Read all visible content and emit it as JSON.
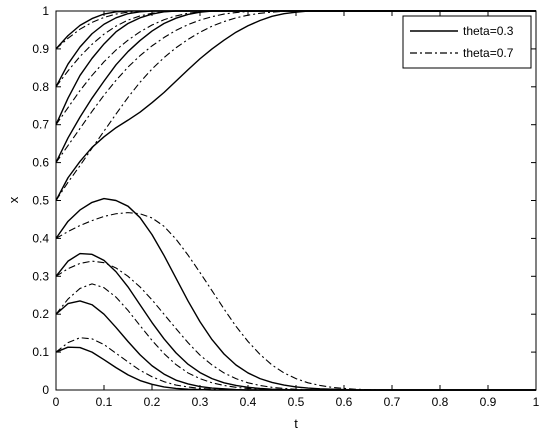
{
  "chart_data": {
    "type": "line",
    "title": "",
    "xlabel": "t",
    "ylabel": "x",
    "xlim": [
      0,
      1
    ],
    "ylim": [
      0,
      1
    ],
    "xticks": [
      "0",
      "0.1",
      "0.2",
      "0.3",
      "0.4",
      "0.5",
      "0.6",
      "0.7",
      "0.8",
      "0.9",
      "1"
    ],
    "yticks": [
      "0",
      "0.1",
      "0.2",
      "0.3",
      "0.4",
      "0.5",
      "0.6",
      "0.7",
      "0.8",
      "0.9",
      "1"
    ],
    "grid": false,
    "legend_position": "top-right",
    "legend": [
      {
        "label": "theta=0.3",
        "style": "solid"
      },
      {
        "label": "theta=0.7",
        "style": "dashdot"
      }
    ],
    "x": [
      0,
      0.025,
      0.05,
      0.075,
      0.1,
      0.125,
      0.15,
      0.175,
      0.2,
      0.225,
      0.25,
      0.275,
      0.3,
      0.325,
      0.35,
      0.375,
      0.4,
      0.425,
      0.45,
      0.475,
      0.5,
      0.525,
      0.55,
      0.575,
      0.6,
      0.625,
      0.65,
      0.675,
      0.7,
      0.725,
      0.75,
      0.775,
      0.8,
      0.825,
      0.85,
      0.875,
      0.9,
      0.925,
      0.95,
      0.975,
      1
    ],
    "series": [
      {
        "theta": 0.3,
        "style": "solid",
        "values": [
          0.9,
          0.935,
          0.962,
          0.98,
          0.992,
          0.998,
          1,
          1,
          1,
          1,
          1,
          1,
          1,
          1,
          1,
          1,
          1,
          1,
          1,
          1,
          1,
          1,
          1,
          1,
          1,
          1,
          1,
          1,
          1,
          1,
          1,
          1,
          1,
          1,
          1,
          1,
          1,
          1,
          1,
          1,
          1
        ]
      },
      {
        "theta": 0.3,
        "style": "solid",
        "values": [
          0.8,
          0.86,
          0.905,
          0.94,
          0.965,
          0.982,
          0.993,
          0.998,
          1,
          1,
          1,
          1,
          1,
          1,
          1,
          1,
          1,
          1,
          1,
          1,
          1,
          1,
          1,
          1,
          1,
          1,
          1,
          1,
          1,
          1,
          1,
          1,
          1,
          1,
          1,
          1,
          1,
          1,
          1,
          1,
          1
        ]
      },
      {
        "theta": 0.3,
        "style": "solid",
        "values": [
          0.7,
          0.77,
          0.83,
          0.875,
          0.913,
          0.945,
          0.967,
          0.982,
          0.992,
          0.998,
          1,
          1,
          1,
          1,
          1,
          1,
          1,
          1,
          1,
          1,
          1,
          1,
          1,
          1,
          1,
          1,
          1,
          1,
          1,
          1,
          1,
          1,
          1,
          1,
          1,
          1,
          1,
          1,
          1,
          1,
          1
        ]
      },
      {
        "theta": 0.3,
        "style": "solid",
        "values": [
          0.6,
          0.665,
          0.72,
          0.77,
          0.815,
          0.858,
          0.893,
          0.922,
          0.947,
          0.967,
          0.981,
          0.991,
          0.997,
          1,
          1,
          1,
          1,
          1,
          1,
          1,
          1,
          1,
          1,
          1,
          1,
          1,
          1,
          1,
          1,
          1,
          1,
          1,
          1,
          1,
          1,
          1,
          1,
          1,
          1,
          1,
          1
        ]
      },
      {
        "theta": 0.3,
        "style": "solid",
        "values": [
          0.5,
          0.56,
          0.603,
          0.64,
          0.668,
          0.692,
          0.712,
          0.733,
          0.758,
          0.785,
          0.815,
          0.845,
          0.874,
          0.9,
          0.923,
          0.944,
          0.961,
          0.975,
          0.986,
          0.993,
          0.997,
          1,
          1,
          1,
          1,
          1,
          1,
          1,
          1,
          1,
          1,
          1,
          1,
          1,
          1,
          1,
          1,
          1,
          1,
          1,
          1
        ]
      },
      {
        "theta": 0.3,
        "style": "solid",
        "values": [
          0.4,
          0.445,
          0.475,
          0.495,
          0.505,
          0.5,
          0.485,
          0.455,
          0.41,
          0.355,
          0.295,
          0.235,
          0.18,
          0.133,
          0.095,
          0.066,
          0.045,
          0.03,
          0.02,
          0.013,
          0.008,
          0.005,
          0.003,
          0.002,
          0.001,
          0,
          0,
          0,
          0,
          0,
          0,
          0,
          0,
          0,
          0,
          0,
          0,
          0,
          0,
          0,
          0
        ]
      },
      {
        "theta": 0.3,
        "style": "solid",
        "values": [
          0.3,
          0.34,
          0.36,
          0.358,
          0.342,
          0.312,
          0.272,
          0.225,
          0.178,
          0.135,
          0.098,
          0.068,
          0.046,
          0.03,
          0.019,
          0.012,
          0.007,
          0.004,
          0.002,
          0.001,
          0,
          0,
          0,
          0,
          0,
          0,
          0,
          0,
          0,
          0,
          0,
          0,
          0,
          0,
          0,
          0,
          0,
          0,
          0,
          0,
          0
        ]
      },
      {
        "theta": 0.3,
        "style": "solid",
        "values": [
          0.2,
          0.228,
          0.235,
          0.225,
          0.2,
          0.165,
          0.128,
          0.093,
          0.064,
          0.042,
          0.026,
          0.016,
          0.009,
          0.005,
          0.003,
          0.001,
          0,
          0,
          0,
          0,
          0,
          0,
          0,
          0,
          0,
          0,
          0,
          0,
          0,
          0,
          0,
          0,
          0,
          0,
          0,
          0,
          0,
          0,
          0,
          0,
          0
        ]
      },
      {
        "theta": 0.3,
        "style": "solid",
        "values": [
          0.1,
          0.113,
          0.112,
          0.1,
          0.08,
          0.059,
          0.04,
          0.025,
          0.015,
          0.008,
          0.004,
          0.002,
          0.001,
          0,
          0,
          0,
          0,
          0,
          0,
          0,
          0,
          0,
          0,
          0,
          0,
          0,
          0,
          0,
          0,
          0,
          0,
          0,
          0,
          0,
          0,
          0,
          0,
          0,
          0,
          0,
          0
        ]
      },
      {
        "theta": 0.7,
        "style": "dashdot",
        "values": [
          0.9,
          0.928,
          0.952,
          0.97,
          0.983,
          0.992,
          0.997,
          1,
          1,
          1,
          1,
          1,
          1,
          1,
          1,
          1,
          1,
          1,
          1,
          1,
          1,
          1,
          1,
          1,
          1,
          1,
          1,
          1,
          1,
          1,
          1,
          1,
          1,
          1,
          1,
          1,
          1,
          1,
          1,
          1,
          1
        ]
      },
      {
        "theta": 0.7,
        "style": "dashdot",
        "values": [
          0.8,
          0.842,
          0.88,
          0.912,
          0.939,
          0.96,
          0.976,
          0.987,
          0.994,
          0.998,
          1,
          1,
          1,
          1,
          1,
          1,
          1,
          1,
          1,
          1,
          1,
          1,
          1,
          1,
          1,
          1,
          1,
          1,
          1,
          1,
          1,
          1,
          1,
          1,
          1,
          1,
          1,
          1,
          1,
          1,
          1
        ]
      },
      {
        "theta": 0.7,
        "style": "dashdot",
        "values": [
          0.7,
          0.745,
          0.79,
          0.83,
          0.866,
          0.897,
          0.923,
          0.945,
          0.963,
          0.977,
          0.987,
          0.994,
          0.998,
          1,
          1,
          1,
          1,
          1,
          1,
          1,
          1,
          1,
          1,
          1,
          1,
          1,
          1,
          1,
          1,
          1,
          1,
          1,
          1,
          1,
          1,
          1,
          1,
          1,
          1,
          1,
          1
        ]
      },
      {
        "theta": 0.7,
        "style": "dashdot",
        "values": [
          0.6,
          0.645,
          0.69,
          0.735,
          0.778,
          0.817,
          0.852,
          0.882,
          0.908,
          0.93,
          0.949,
          0.964,
          0.976,
          0.985,
          0.992,
          0.996,
          0.999,
          1,
          1,
          1,
          1,
          1,
          1,
          1,
          1,
          1,
          1,
          1,
          1,
          1,
          1,
          1,
          1,
          1,
          1,
          1,
          1,
          1,
          1,
          1,
          1
        ]
      },
      {
        "theta": 0.7,
        "style": "dashdot",
        "values": [
          0.5,
          0.548,
          0.592,
          0.638,
          0.683,
          0.728,
          0.772,
          0.812,
          0.847,
          0.877,
          0.903,
          0.925,
          0.944,
          0.96,
          0.972,
          0.982,
          0.989,
          0.994,
          0.997,
          0.999,
          1,
          1,
          1,
          1,
          1,
          1,
          1,
          1,
          1,
          1,
          1,
          1,
          1,
          1,
          1,
          1,
          1,
          1,
          1,
          1,
          1
        ]
      },
      {
        "theta": 0.7,
        "style": "dashdot",
        "values": [
          0.4,
          0.418,
          0.434,
          0.447,
          0.458,
          0.465,
          0.468,
          0.465,
          0.454,
          0.432,
          0.398,
          0.356,
          0.31,
          0.262,
          0.214,
          0.168,
          0.128,
          0.094,
          0.066,
          0.045,
          0.03,
          0.019,
          0.012,
          0.007,
          0.004,
          0.002,
          0.001,
          0,
          0,
          0,
          0,
          0,
          0,
          0,
          0,
          0,
          0,
          0,
          0,
          0,
          0
        ]
      },
      {
        "theta": 0.7,
        "style": "dashdot",
        "values": [
          0.3,
          0.32,
          0.334,
          0.34,
          0.336,
          0.322,
          0.3,
          0.272,
          0.238,
          0.2,
          0.162,
          0.125,
          0.092,
          0.066,
          0.045,
          0.03,
          0.019,
          0.012,
          0.007,
          0.004,
          0.002,
          0.001,
          0,
          0,
          0,
          0,
          0,
          0,
          0,
          0,
          0,
          0,
          0,
          0,
          0,
          0,
          0,
          0,
          0,
          0,
          0
        ]
      },
      {
        "theta": 0.7,
        "style": "dashdot",
        "values": [
          0.2,
          0.24,
          0.268,
          0.28,
          0.27,
          0.245,
          0.21,
          0.17,
          0.131,
          0.096,
          0.067,
          0.045,
          0.03,
          0.019,
          0.012,
          0.007,
          0.004,
          0.002,
          0.001,
          0,
          0,
          0,
          0,
          0,
          0,
          0,
          0,
          0,
          0,
          0,
          0,
          0,
          0,
          0,
          0,
          0,
          0,
          0,
          0,
          0,
          0
        ]
      },
      {
        "theta": 0.7,
        "style": "dashdot",
        "values": [
          0.1,
          0.125,
          0.138,
          0.135,
          0.12,
          0.097,
          0.074,
          0.052,
          0.035,
          0.022,
          0.013,
          0.008,
          0.004,
          0.002,
          0.001,
          0,
          0,
          0,
          0,
          0,
          0,
          0,
          0,
          0,
          0,
          0,
          0,
          0,
          0,
          0,
          0,
          0,
          0,
          0,
          0,
          0,
          0,
          0,
          0,
          0,
          0
        ]
      }
    ]
  }
}
